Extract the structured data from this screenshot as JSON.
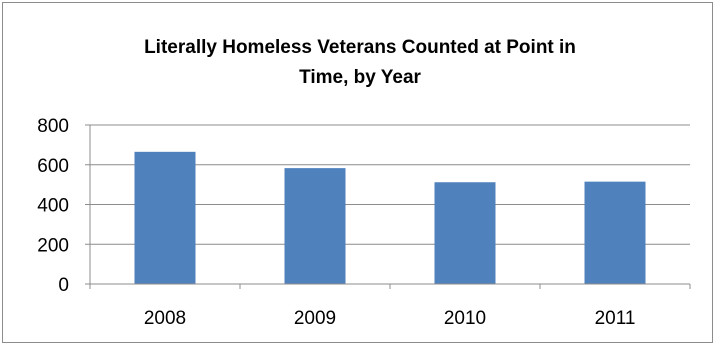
{
  "chart_data": {
    "type": "bar",
    "title_line1": "Literally Homeless Veterans Counted at Point in",
    "title_line2": "Time, by Year",
    "categories": [
      "2008",
      "2009",
      "2010",
      "2011"
    ],
    "values": [
      665,
      583,
      512,
      515
    ],
    "ylim": [
      0,
      800
    ],
    "yticks": [
      0,
      200,
      400,
      600,
      800
    ],
    "grid": true,
    "legend": "none",
    "bar_color": "#4f81bd",
    "grid_color": "#8c8c8c",
    "axis_color": "#8c8c8c"
  }
}
